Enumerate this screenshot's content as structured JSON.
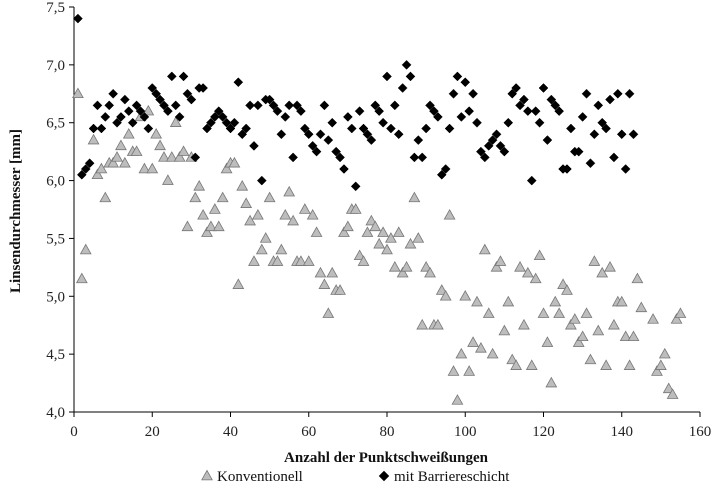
{
  "chart_data": {
    "type": "scatter",
    "title": "",
    "xlabel": "Anzahl der Punktschweißungen",
    "ylabel": "Linsendurchmesser [mm]",
    "xlim": [
      0,
      160
    ],
    "ylim": [
      4.0,
      7.5
    ],
    "x_ticks": [
      "0",
      "20",
      "40",
      "60",
      "80",
      "100",
      "120",
      "140",
      "160"
    ],
    "y_ticks": [
      "4,0",
      "4,5",
      "5,0",
      "5,5",
      "6,0",
      "6,5",
      "7,0",
      "7,5"
    ],
    "grid": false,
    "legend_position": "bottom",
    "series": [
      {
        "name": "Konventionell",
        "marker": "triangle",
        "color": "#bdbdbd",
        "stroke": "#777777",
        "points": [
          [
            1,
            6.75
          ],
          [
            2,
            5.15
          ],
          [
            3,
            5.4
          ],
          [
            5,
            6.35
          ],
          [
            6,
            6.05
          ],
          [
            7,
            6.1
          ],
          [
            8,
            5.85
          ],
          [
            9,
            6.15
          ],
          [
            10,
            6.15
          ],
          [
            11,
            6.2
          ],
          [
            12,
            6.3
          ],
          [
            13,
            6.15
          ],
          [
            14,
            6.4
          ],
          [
            15,
            6.25
          ],
          [
            16,
            6.25
          ],
          [
            17,
            6.55
          ],
          [
            18,
            6.1
          ],
          [
            19,
            6.6
          ],
          [
            20,
            6.1
          ],
          [
            21,
            6.4
          ],
          [
            22,
            6.3
          ],
          [
            23,
            6.2
          ],
          [
            24,
            6.0
          ],
          [
            25,
            6.2
          ],
          [
            26,
            6.5
          ],
          [
            27,
            6.2
          ],
          [
            28,
            6.25
          ],
          [
            29,
            5.6
          ],
          [
            30,
            6.2
          ],
          [
            31,
            5.85
          ],
          [
            32,
            5.95
          ],
          [
            33,
            5.7
          ],
          [
            34,
            5.55
          ],
          [
            35,
            5.6
          ],
          [
            36,
            5.75
          ],
          [
            37,
            5.6
          ],
          [
            38,
            5.85
          ],
          [
            39,
            6.1
          ],
          [
            40,
            6.15
          ],
          [
            41,
            6.15
          ],
          [
            42,
            5.1
          ],
          [
            43,
            5.95
          ],
          [
            44,
            5.8
          ],
          [
            45,
            5.65
          ],
          [
            46,
            5.3
          ],
          [
            47,
            5.7
          ],
          [
            48,
            5.4
          ],
          [
            49,
            5.5
          ],
          [
            50,
            5.85
          ],
          [
            51,
            5.3
          ],
          [
            52,
            5.3
          ],
          [
            53,
            5.4
          ],
          [
            54,
            5.7
          ],
          [
            55,
            5.9
          ],
          [
            56,
            5.65
          ],
          [
            57,
            5.3
          ],
          [
            58,
            5.3
          ],
          [
            59,
            5.75
          ],
          [
            60,
            5.3
          ],
          [
            61,
            5.7
          ],
          [
            62,
            5.55
          ],
          [
            63,
            5.2
          ],
          [
            64,
            5.1
          ],
          [
            65,
            4.85
          ],
          [
            66,
            5.2
          ],
          [
            67,
            5.05
          ],
          [
            68,
            5.05
          ],
          [
            69,
            5.55
          ],
          [
            70,
            5.6
          ],
          [
            71,
            5.75
          ],
          [
            72,
            5.75
          ],
          [
            73,
            5.35
          ],
          [
            74,
            5.3
          ],
          [
            75,
            5.55
          ],
          [
            76,
            5.65
          ],
          [
            77,
            5.6
          ],
          [
            78,
            5.45
          ],
          [
            79,
            5.55
          ],
          [
            80,
            5.4
          ],
          [
            81,
            5.5
          ],
          [
            82,
            5.25
          ],
          [
            83,
            5.55
          ],
          [
            84,
            5.2
          ],
          [
            85,
            5.25
          ],
          [
            86,
            5.45
          ],
          [
            87,
            5.85
          ],
          [
            88,
            5.5
          ],
          [
            89,
            4.75
          ],
          [
            90,
            5.25
          ],
          [
            91,
            5.2
          ],
          [
            92,
            4.75
          ],
          [
            93,
            4.75
          ],
          [
            94,
            5.05
          ],
          [
            95,
            5.0
          ],
          [
            96,
            5.7
          ],
          [
            97,
            4.35
          ],
          [
            98,
            4.1
          ],
          [
            99,
            4.5
          ],
          [
            100,
            5.0
          ],
          [
            101,
            4.35
          ],
          [
            102,
            4.6
          ],
          [
            103,
            4.95
          ],
          [
            104,
            4.55
          ],
          [
            105,
            5.4
          ],
          [
            106,
            4.85
          ],
          [
            107,
            4.5
          ],
          [
            108,
            5.25
          ],
          [
            109,
            5.3
          ],
          [
            110,
            4.7
          ],
          [
            111,
            4.95
          ],
          [
            112,
            4.45
          ],
          [
            113,
            4.4
          ],
          [
            114,
            5.25
          ],
          [
            115,
            4.75
          ],
          [
            116,
            5.2
          ],
          [
            117,
            4.4
          ],
          [
            118,
            5.15
          ],
          [
            119,
            5.35
          ],
          [
            120,
            4.85
          ],
          [
            121,
            4.6
          ],
          [
            122,
            4.25
          ],
          [
            123,
            4.95
          ],
          [
            124,
            4.85
          ],
          [
            125,
            5.1
          ],
          [
            126,
            5.05
          ],
          [
            127,
            4.75
          ],
          [
            128,
            4.8
          ],
          [
            129,
            4.6
          ],
          [
            130,
            4.65
          ],
          [
            131,
            4.85
          ],
          [
            132,
            4.45
          ],
          [
            133,
            5.3
          ],
          [
            134,
            4.7
          ],
          [
            135,
            5.2
          ],
          [
            136,
            4.4
          ],
          [
            137,
            5.25
          ],
          [
            138,
            4.75
          ],
          [
            139,
            4.95
          ],
          [
            140,
            4.95
          ],
          [
            141,
            4.65
          ],
          [
            142,
            4.4
          ],
          [
            143,
            4.65
          ],
          [
            144,
            5.15
          ],
          [
            145,
            4.9
          ],
          [
            148,
            4.8
          ],
          [
            149,
            4.35
          ],
          [
            150,
            4.4
          ],
          [
            151,
            4.5
          ],
          [
            152,
            4.2
          ],
          [
            153,
            4.15
          ],
          [
            154,
            4.8
          ],
          [
            155,
            4.85
          ]
        ]
      },
      {
        "name": "mit Barriereschicht",
        "marker": "diamond",
        "color": "#000000",
        "stroke": "#000000",
        "points": [
          [
            1,
            7.4
          ],
          [
            2,
            6.05
          ],
          [
            3,
            6.1
          ],
          [
            4,
            6.15
          ],
          [
            5,
            6.45
          ],
          [
            6,
            6.65
          ],
          [
            7,
            6.45
          ],
          [
            8,
            6.55
          ],
          [
            9,
            6.65
          ],
          [
            10,
            6.75
          ],
          [
            11,
            6.5
          ],
          [
            12,
            6.55
          ],
          [
            13,
            6.7
          ],
          [
            14,
            6.6
          ],
          [
            15,
            6.5
          ],
          [
            16,
            6.65
          ],
          [
            17,
            6.6
          ],
          [
            18,
            6.55
          ],
          [
            19,
            6.45
          ],
          [
            20,
            6.8
          ],
          [
            21,
            6.75
          ],
          [
            22,
            6.7
          ],
          [
            23,
            6.65
          ],
          [
            24,
            6.6
          ],
          [
            25,
            6.9
          ],
          [
            26,
            6.65
          ],
          [
            27,
            6.55
          ],
          [
            28,
            6.9
          ],
          [
            29,
            6.75
          ],
          [
            30,
            6.7
          ],
          [
            31,
            6.2
          ],
          [
            32,
            6.8
          ],
          [
            33,
            6.8
          ],
          [
            34,
            6.45
          ],
          [
            35,
            6.5
          ],
          [
            36,
            6.55
          ],
          [
            37,
            6.6
          ],
          [
            38,
            6.55
          ],
          [
            39,
            6.5
          ],
          [
            40,
            6.45
          ],
          [
            41,
            6.5
          ],
          [
            42,
            6.85
          ],
          [
            43,
            6.4
          ],
          [
            44,
            6.45
          ],
          [
            45,
            6.65
          ],
          [
            46,
            6.3
          ],
          [
            47,
            6.65
          ],
          [
            48,
            6.0
          ],
          [
            49,
            6.7
          ],
          [
            50,
            6.7
          ],
          [
            51,
            6.65
          ],
          [
            52,
            6.6
          ],
          [
            53,
            6.4
          ],
          [
            54,
            6.55
          ],
          [
            55,
            6.65
          ],
          [
            56,
            6.2
          ],
          [
            57,
            6.65
          ],
          [
            58,
            6.6
          ],
          [
            59,
            6.45
          ],
          [
            60,
            6.4
          ],
          [
            61,
            6.3
          ],
          [
            62,
            6.25
          ],
          [
            63,
            6.4
          ],
          [
            64,
            6.65
          ],
          [
            65,
            6.35
          ],
          [
            66,
            6.5
          ],
          [
            67,
            6.25
          ],
          [
            68,
            6.2
          ],
          [
            69,
            6.1
          ],
          [
            70,
            6.55
          ],
          [
            71,
            6.45
          ],
          [
            72,
            5.95
          ],
          [
            73,
            6.6
          ],
          [
            74,
            6.45
          ],
          [
            75,
            6.4
          ],
          [
            76,
            6.35
          ],
          [
            77,
            6.65
          ],
          [
            78,
            6.6
          ],
          [
            79,
            6.5
          ],
          [
            80,
            6.9
          ],
          [
            81,
            6.45
          ],
          [
            82,
            6.65
          ],
          [
            83,
            6.4
          ],
          [
            84,
            6.8
          ],
          [
            85,
            7.0
          ],
          [
            86,
            6.9
          ],
          [
            87,
            6.2
          ],
          [
            88,
            6.35
          ],
          [
            89,
            6.2
          ],
          [
            90,
            6.45
          ],
          [
            91,
            6.65
          ],
          [
            92,
            6.6
          ],
          [
            93,
            6.55
          ],
          [
            94,
            6.05
          ],
          [
            95,
            6.1
          ],
          [
            96,
            6.45
          ],
          [
            97,
            6.75
          ],
          [
            98,
            6.9
          ],
          [
            99,
            6.55
          ],
          [
            100,
            6.85
          ],
          [
            101,
            6.6
          ],
          [
            102,
            6.75
          ],
          [
            103,
            6.5
          ],
          [
            104,
            6.25
          ],
          [
            105,
            6.2
          ],
          [
            106,
            6.3
          ],
          [
            107,
            6.35
          ],
          [
            108,
            6.4
          ],
          [
            109,
            6.3
          ],
          [
            110,
            6.25
          ],
          [
            111,
            6.5
          ],
          [
            112,
            6.75
          ],
          [
            113,
            6.8
          ],
          [
            114,
            6.65
          ],
          [
            115,
            6.7
          ],
          [
            116,
            6.6
          ],
          [
            117,
            6.0
          ],
          [
            118,
            6.6
          ],
          [
            119,
            6.5
          ],
          [
            120,
            6.8
          ],
          [
            121,
            6.35
          ],
          [
            122,
            6.7
          ],
          [
            123,
            6.65
          ],
          [
            124,
            6.6
          ],
          [
            125,
            6.1
          ],
          [
            126,
            6.1
          ],
          [
            127,
            6.45
          ],
          [
            128,
            6.25
          ],
          [
            129,
            6.25
          ],
          [
            130,
            6.55
          ],
          [
            131,
            6.75
          ],
          [
            132,
            6.15
          ],
          [
            133,
            6.4
          ],
          [
            134,
            6.65
          ],
          [
            135,
            6.5
          ],
          [
            136,
            6.45
          ],
          [
            137,
            6.7
          ],
          [
            138,
            6.2
          ],
          [
            139,
            6.75
          ],
          [
            140,
            6.4
          ],
          [
            141,
            6.1
          ],
          [
            142,
            6.75
          ],
          [
            143,
            6.4
          ]
        ]
      }
    ]
  }
}
